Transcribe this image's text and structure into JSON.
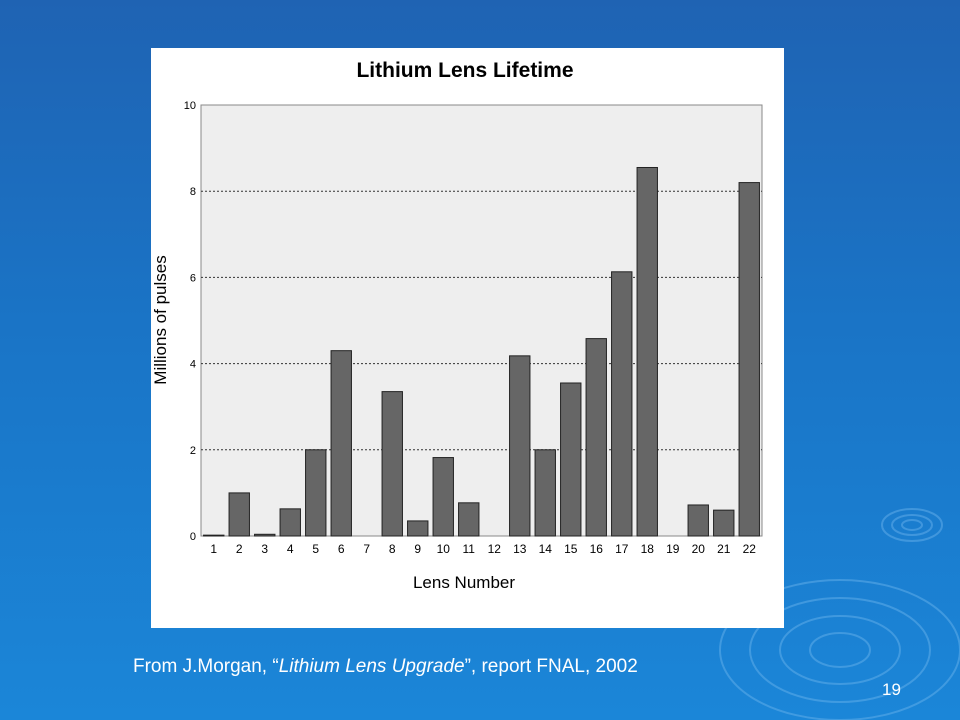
{
  "slide": {
    "caption_prefix": "From J.Morgan, “",
    "caption_italic": "Lithium Lens Upgrade",
    "caption_suffix": "”, report FNAL, 2002",
    "page_number": "19"
  },
  "colors": {
    "background_top": "#1f63b3",
    "background_bottom": "#1b86d8",
    "bar_fill": "#666666",
    "plot_background": "#eeeeee"
  },
  "chart_data": {
    "type": "bar",
    "title": "Lithium Lens Lifetime",
    "xlabel": "Lens Number",
    "ylabel": "Millions of pulses",
    "categories": [
      "1",
      "2",
      "3",
      "4",
      "5",
      "6",
      "7",
      "8",
      "9",
      "10",
      "11",
      "12",
      "13",
      "14",
      "15",
      "16",
      "17",
      "18",
      "19",
      "20",
      "21",
      "22"
    ],
    "values": [
      0.02,
      1.0,
      0.04,
      0.63,
      2.0,
      4.3,
      0,
      3.35,
      0.35,
      1.82,
      0.77,
      0,
      4.18,
      2.0,
      3.55,
      4.58,
      6.13,
      8.55,
      0,
      0.72,
      0.6,
      8.2
    ],
    "ylim": [
      0,
      10
    ],
    "yticks": [
      0,
      2,
      4,
      6,
      8,
      10
    ],
    "grid": "horizontal dotted",
    "legend": "none"
  }
}
